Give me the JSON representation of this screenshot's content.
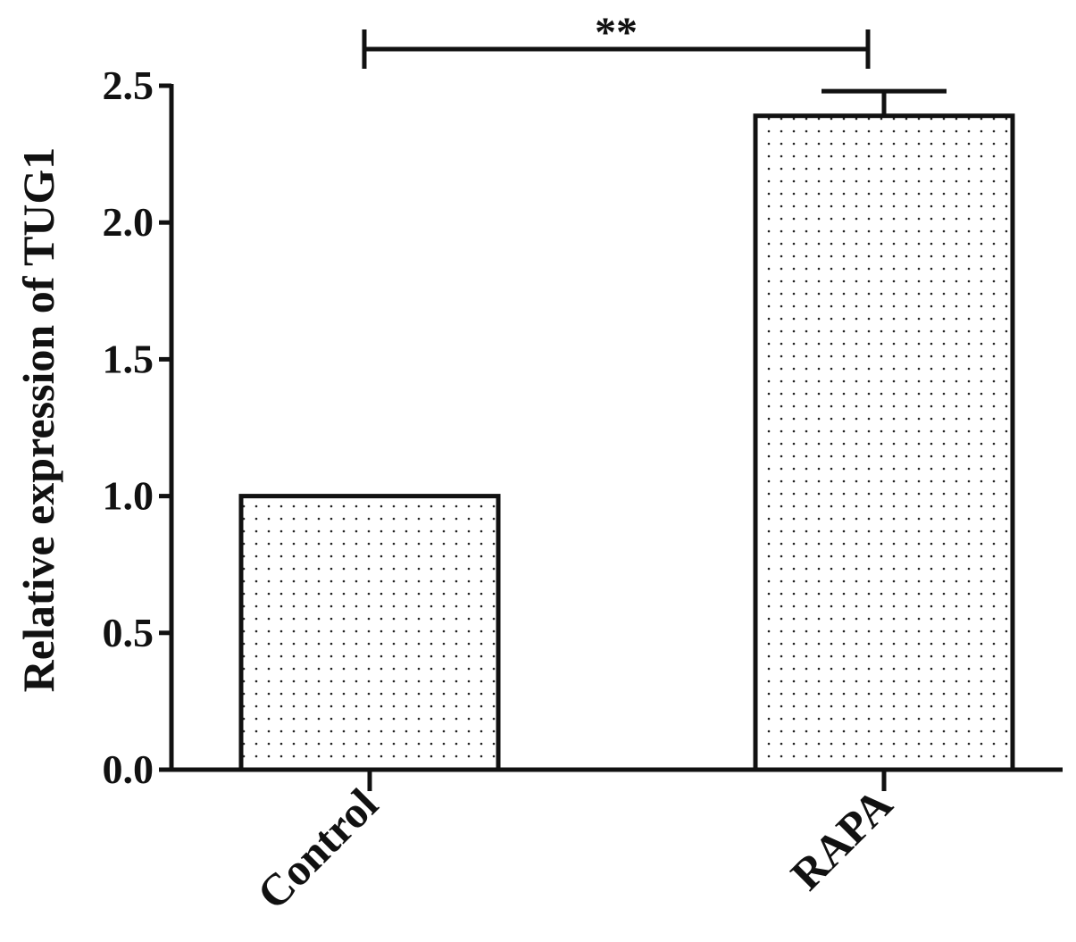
{
  "chart_data": {
    "type": "bar",
    "y_label": "Relative expression of TUG1",
    "categories": [
      "Control",
      "RAPA"
    ],
    "values": [
      1.0,
      2.39
    ],
    "errors": [
      null,
      0.09
    ],
    "ylim": [
      0,
      2.5
    ],
    "yticks": [
      {
        "value": 0,
        "label": "0.0"
      },
      {
        "value": 0.5,
        "label": "0.5"
      },
      {
        "value": 1,
        "label": "1.0"
      },
      {
        "value": 1.5,
        "label": "1.5"
      },
      {
        "value": 2,
        "label": "2.0"
      },
      {
        "value": 2.5,
        "label": "2.5"
      }
    ],
    "annotation": "**",
    "color": "#111111"
  }
}
